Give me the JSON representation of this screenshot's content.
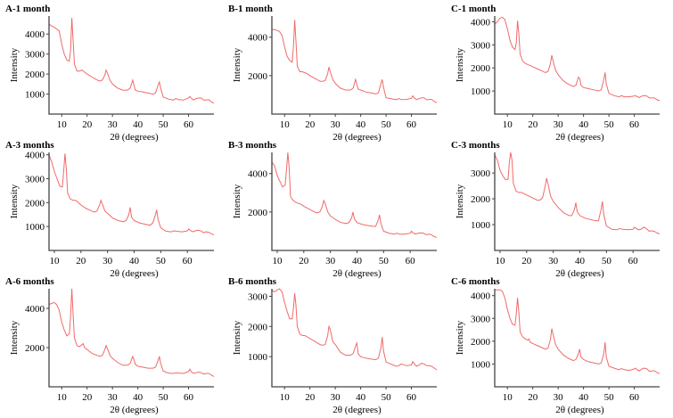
{
  "figure": {
    "description": "XRD patterns of samples A, B, C after 1, 3 and 6 months"
  },
  "chart_data": [
    {
      "id": "A-1",
      "type": "line",
      "title": "A-1 month",
      "xlabel": "2θ (degrees)",
      "ylabel": "Intensity",
      "xlim": [
        5,
        70
      ],
      "ylim": [
        0,
        4900
      ],
      "xticks": [
        10,
        20,
        30,
        40,
        50,
        60
      ],
      "yticks": [
        1000,
        2000,
        3000,
        4000
      ],
      "color": "#f06a6a",
      "x": [
        5,
        6,
        7,
        8,
        9,
        10,
        11,
        12,
        13,
        13.5,
        14,
        14.5,
        15,
        16,
        17,
        18,
        19,
        20,
        22,
        24,
        25,
        26,
        27,
        27.5,
        28,
        29,
        30,
        32,
        34,
        36,
        37,
        38,
        38.5,
        39,
        40,
        42,
        44,
        46,
        47,
        48,
        48.5,
        49,
        50,
        52,
        54,
        55,
        56,
        58,
        60,
        60.5,
        61,
        62,
        63,
        64,
        65,
        66,
        67,
        68,
        69,
        70
      ],
      "y": [
        4500,
        4400,
        4350,
        4250,
        4150,
        3500,
        3000,
        2700,
        2650,
        3200,
        4800,
        3700,
        2500,
        2150,
        2150,
        2200,
        2100,
        2000,
        1850,
        1700,
        1650,
        1700,
        1950,
        2200,
        2050,
        1700,
        1500,
        1300,
        1200,
        1200,
        1300,
        1700,
        1450,
        1200,
        1150,
        1100,
        1050,
        1000,
        1050,
        1450,
        1600,
        1300,
        850,
        750,
        700,
        780,
        720,
        700,
        800,
        880,
        800,
        700,
        780,
        800,
        800,
        700,
        700,
        720,
        600,
        550
      ]
    },
    {
      "id": "B-1",
      "type": "line",
      "title": "B-1 month",
      "xlabel": "2θ (degrees)",
      "ylabel": "Intensity",
      "xlim": [
        5,
        70
      ],
      "ylim": [
        0,
        5100
      ],
      "xticks": [
        10,
        20,
        30,
        40,
        50,
        60
      ],
      "yticks": [
        2000,
        4000
      ],
      "color": "#f06a6a",
      "x": [
        5,
        6,
        7,
        8,
        9,
        10,
        11,
        12,
        13,
        13.5,
        14,
        14.5,
        15,
        16,
        17,
        18,
        19,
        20,
        22,
        24,
        25,
        26,
        27,
        27.5,
        28,
        29,
        30,
        32,
        34,
        36,
        37,
        38,
        38.5,
        39,
        40,
        42,
        44,
        46,
        47,
        48,
        48.5,
        49,
        50,
        52,
        54,
        55,
        56,
        58,
        60,
        60.5,
        61,
        62,
        63,
        64,
        65,
        66,
        67,
        68,
        69,
        70
      ],
      "y": [
        4400,
        4400,
        4350,
        4300,
        4100,
        3500,
        3000,
        2800,
        2700,
        3500,
        4900,
        3800,
        2500,
        2200,
        2200,
        2150,
        2100,
        2000,
        1850,
        1700,
        1700,
        1750,
        2100,
        2450,
        2200,
        1800,
        1600,
        1350,
        1250,
        1250,
        1350,
        1800,
        1550,
        1300,
        1250,
        1150,
        1100,
        1050,
        1100,
        1600,
        1800,
        1400,
        850,
        800,
        750,
        800,
        750,
        760,
        820,
        950,
        850,
        750,
        800,
        850,
        850,
        740,
        760,
        760,
        650,
        600
      ]
    },
    {
      "id": "C-1",
      "type": "line",
      "title": "C-1 month",
      "xlabel": "2θ (degrees)",
      "ylabel": "Intensity",
      "xlim": [
        5,
        70
      ],
      "ylim": [
        0,
        4250
      ],
      "xticks": [
        10,
        20,
        30,
        40,
        50,
        60
      ],
      "yticks": [
        1000,
        2000,
        3000,
        4000
      ],
      "color": "#f06a6a",
      "x": [
        5,
        6,
        7,
        8,
        9,
        10,
        11,
        12,
        13,
        13.5,
        14,
        14.5,
        15,
        16,
        17,
        18,
        19,
        20,
        22,
        24,
        25,
        26,
        27,
        27.5,
        28,
        29,
        30,
        32,
        34,
        36,
        37,
        38,
        38.5,
        39,
        40,
        42,
        44,
        46,
        47,
        48,
        48.5,
        49,
        50,
        52,
        54,
        55,
        56,
        58,
        60,
        60.5,
        61,
        62,
        63,
        64,
        65,
        66,
        67,
        68,
        69,
        70
      ],
      "y": [
        3900,
        4000,
        4150,
        4200,
        4100,
        3700,
        3200,
        2900,
        2800,
        3100,
        4050,
        3500,
        2600,
        2300,
        2200,
        2150,
        2100,
        2050,
        1950,
        1850,
        1800,
        1850,
        2200,
        2550,
        2300,
        1900,
        1700,
        1450,
        1300,
        1200,
        1250,
        1600,
        1550,
        1250,
        1150,
        1100,
        1050,
        1000,
        1050,
        1500,
        1800,
        1300,
        900,
        800,
        750,
        800,
        750,
        750,
        780,
        800,
        760,
        720,
        780,
        800,
        780,
        700,
        700,
        700,
        620,
        580
      ]
    },
    {
      "id": "A-3",
      "type": "line",
      "title": "A-3 months",
      "xlabel": "2θ (degrees)",
      "ylabel": "Intensity",
      "xlim": [
        8,
        70
      ],
      "ylim": [
        0,
        4100
      ],
      "xticks": [
        10,
        20,
        30,
        40,
        50,
        60
      ],
      "yticks": [
        1000,
        2000,
        3000,
        4000
      ],
      "color": "#f06a6a",
      "x": [
        8,
        9,
        10,
        11,
        12,
        13,
        13.5,
        14,
        14.5,
        15,
        16,
        17,
        18,
        19,
        20,
        22,
        24,
        25,
        26,
        27,
        27.5,
        28,
        29,
        30,
        32,
        34,
        36,
        37,
        38,
        38.5,
        39,
        40,
        42,
        44,
        46,
        47,
        48,
        48.5,
        49,
        50,
        52,
        54,
        55,
        56,
        58,
        60,
        60.5,
        61,
        62,
        63,
        64,
        65,
        66,
        67,
        68,
        69,
        70
      ],
      "y": [
        4000,
        3700,
        3300,
        3000,
        2700,
        2650,
        3300,
        4050,
        3400,
        2400,
        2150,
        2100,
        2100,
        2000,
        1900,
        1750,
        1650,
        1600,
        1650,
        1900,
        2100,
        1950,
        1650,
        1550,
        1350,
        1250,
        1200,
        1250,
        1500,
        1800,
        1400,
        1250,
        1150,
        1100,
        1050,
        1150,
        1500,
        1700,
        1300,
        950,
        800,
        780,
        820,
        800,
        780,
        820,
        900,
        850,
        780,
        820,
        850,
        820,
        750,
        780,
        760,
        700,
        650
      ]
    },
    {
      "id": "B-3",
      "type": "line",
      "title": "B-3 months",
      "xlabel": "2θ (degrees)",
      "ylabel": "Intensity",
      "xlim": [
        8,
        70
      ],
      "ylim": [
        0,
        5100
      ],
      "xticks": [
        10,
        20,
        30,
        40,
        50,
        60
      ],
      "yticks": [
        2000,
        4000
      ],
      "color": "#f06a6a",
      "x": [
        8,
        9,
        10,
        11,
        12,
        13,
        13.5,
        14,
        14.5,
        15,
        16,
        17,
        18,
        19,
        20,
        22,
        24,
        25,
        26,
        27,
        27.5,
        28,
        29,
        30,
        32,
        34,
        36,
        37,
        38,
        38.5,
        39,
        40,
        42,
        44,
        46,
        47,
        48,
        48.5,
        49,
        50,
        52,
        54,
        55,
        56,
        58,
        60,
        60.5,
        61,
        62,
        63,
        64,
        65,
        66,
        67,
        68,
        69,
        70
      ],
      "y": [
        4600,
        4400,
        3900,
        3600,
        3300,
        3400,
        4200,
        5100,
        4300,
        2800,
        2600,
        2500,
        2450,
        2400,
        2300,
        2150,
        2000,
        1950,
        2000,
        2300,
        2600,
        2450,
        2000,
        1800,
        1600,
        1450,
        1400,
        1450,
        1700,
        2000,
        1650,
        1450,
        1350,
        1300,
        1250,
        1250,
        1600,
        1850,
        1400,
        1000,
        900,
        850,
        900,
        850,
        850,
        900,
        1000,
        920,
        850,
        900,
        920,
        900,
        820,
        850,
        820,
        720,
        680
      ]
    },
    {
      "id": "C-3",
      "type": "line",
      "title": "C-3 months",
      "xlabel": "2θ (degrees)",
      "ylabel": "Intensity",
      "xlim": [
        8,
        70
      ],
      "ylim": [
        0,
        3800
      ],
      "xticks": [
        10,
        20,
        30,
        40,
        50,
        60
      ],
      "yticks": [
        1000,
        2000,
        3000
      ],
      "color": "#f06a6a",
      "x": [
        8,
        9,
        10,
        11,
        12,
        13,
        13.5,
        14,
        14.5,
        15,
        16,
        17,
        18,
        19,
        20,
        22,
        24,
        25,
        26,
        27,
        27.5,
        28,
        29,
        30,
        32,
        34,
        36,
        37,
        38,
        38.5,
        39,
        40,
        42,
        44,
        46,
        47,
        48,
        48.5,
        49,
        50,
        52,
        54,
        55,
        56,
        58,
        60,
        60.5,
        61,
        62,
        63,
        64,
        65,
        66,
        67,
        68,
        69,
        70
      ],
      "y": [
        3700,
        3500,
        3100,
        2900,
        2750,
        2750,
        3400,
        3800,
        3500,
        2600,
        2300,
        2250,
        2250,
        2200,
        2150,
        2050,
        1950,
        1950,
        2050,
        2500,
        2800,
        2600,
        2100,
        1900,
        1650,
        1450,
        1350,
        1350,
        1600,
        1850,
        1500,
        1350,
        1250,
        1200,
        1150,
        1150,
        1600,
        1900,
        1400,
        950,
        820,
        800,
        850,
        820,
        800,
        820,
        900,
        870,
        800,
        820,
        900,
        850,
        750,
        760,
        740,
        680,
        640
      ]
    },
    {
      "id": "A-6",
      "type": "line",
      "title": "A-6 months",
      "xlabel": "2θ (degrees)",
      "ylabel": "Intensity",
      "xlim": [
        5,
        70
      ],
      "ylim": [
        0,
        5000
      ],
      "xticks": [
        10,
        20,
        30,
        40,
        50,
        60
      ],
      "yticks": [
        2000,
        4000
      ],
      "color": "#f06a6a",
      "x": [
        5,
        6,
        7,
        8,
        9,
        10,
        11,
        12,
        13,
        13.5,
        14,
        14.5,
        15,
        16,
        17,
        18,
        18.5,
        19,
        20,
        22,
        24,
        25,
        26,
        27,
        27.5,
        28,
        29,
        30,
        32,
        34,
        36,
        37,
        38,
        38.5,
        39,
        40,
        42,
        44,
        46,
        47,
        48,
        48.5,
        49,
        50,
        52,
        54,
        55,
        56,
        58,
        60,
        60.5,
        61,
        62,
        63,
        64,
        65,
        66,
        67,
        68,
        69,
        70
      ],
      "y": [
        4200,
        4250,
        4300,
        4200,
        3900,
        3300,
        2900,
        2600,
        2700,
        3600,
        5000,
        3700,
        2500,
        2100,
        2050,
        2150,
        2200,
        2000,
        1900,
        1700,
        1600,
        1550,
        1600,
        1900,
        2100,
        1950,
        1600,
        1450,
        1250,
        1100,
        1100,
        1200,
        1550,
        1400,
        1150,
        1050,
        1000,
        950,
        950,
        1000,
        1350,
        1550,
        1200,
        800,
        700,
        680,
        720,
        700,
        680,
        780,
        900,
        780,
        680,
        720,
        750,
        720,
        650,
        680,
        680,
        600,
        520
      ]
    },
    {
      "id": "B-6",
      "type": "line",
      "title": "B-6 months",
      "xlabel": "2θ (degrees)",
      "ylabel": "Intensity",
      "xlim": [
        5,
        70
      ],
      "ylim": [
        0,
        3250
      ],
      "xticks": [
        10,
        20,
        30,
        40,
        50,
        60
      ],
      "yticks": [
        1000,
        2000,
        3000
      ],
      "color": "#f06a6a",
      "x": [
        5,
        6,
        7,
        8,
        9,
        10,
        11,
        12,
        13,
        13.5,
        14,
        14.5,
        15,
        16,
        17,
        18,
        19,
        20,
        22,
        24,
        25,
        26,
        27,
        27.5,
        28,
        29,
        30,
        32,
        34,
        36,
        37,
        38,
        38.5,
        39,
        40,
        42,
        44,
        46,
        47,
        48,
        48.5,
        49,
        50,
        52,
        54,
        55,
        56,
        58,
        60,
        60.5,
        61,
        62,
        63,
        64,
        65,
        66,
        67,
        68,
        69,
        70
      ],
      "y": [
        3200,
        3150,
        3200,
        3250,
        3150,
        2800,
        2500,
        2250,
        2250,
        2600,
        3100,
        2700,
        2000,
        1750,
        1700,
        1700,
        1650,
        1600,
        1500,
        1400,
        1380,
        1400,
        1700,
        2000,
        1900,
        1500,
        1400,
        1150,
        1050,
        1050,
        1100,
        1350,
        1450,
        1100,
        1000,
        950,
        920,
        900,
        950,
        1300,
        1650,
        1200,
        820,
        750,
        680,
        700,
        760,
        700,
        720,
        830,
        780,
        680,
        720,
        780,
        760,
        700,
        700,
        680,
        620,
        560
      ]
    },
    {
      "id": "C-6",
      "type": "line",
      "title": "C-6 months",
      "xlabel": "2θ (degrees)",
      "ylabel": "Intensity",
      "xlim": [
        5,
        70
      ],
      "ylim": [
        0,
        4300
      ],
      "xticks": [
        10,
        20,
        30,
        40,
        50,
        60
      ],
      "yticks": [
        1000,
        2000,
        3000,
        4000
      ],
      "color": "#f06a6a",
      "x": [
        5,
        6,
        7,
        8,
        9,
        10,
        11,
        12,
        13,
        13.5,
        14,
        14.5,
        15,
        16,
        17,
        18,
        18.5,
        19,
        20,
        22,
        24,
        25,
        26,
        27,
        27.5,
        28,
        29,
        30,
        32,
        34,
        36,
        37,
        38,
        38.5,
        39,
        40,
        42,
        44,
        46,
        47,
        48,
        48.5,
        49,
        50,
        52,
        54,
        55,
        56,
        58,
        60,
        60.5,
        61,
        62,
        63,
        64,
        65,
        66,
        67,
        68,
        69,
        70
      ],
      "y": [
        4250,
        4250,
        4250,
        4200,
        3900,
        3400,
        3000,
        2750,
        2700,
        3200,
        3900,
        3300,
        2400,
        2200,
        2100,
        2050,
        2100,
        1950,
        1900,
        1800,
        1700,
        1650,
        1700,
        2100,
        2550,
        2300,
        1850,
        1650,
        1400,
        1250,
        1150,
        1200,
        1450,
        1650,
        1300,
        1200,
        1100,
        1050,
        1000,
        1050,
        1450,
        1950,
        1300,
        900,
        820,
        750,
        800,
        750,
        720,
        780,
        820,
        760,
        700,
        780,
        820,
        780,
        680,
        700,
        700,
        620,
        580
      ]
    }
  ]
}
